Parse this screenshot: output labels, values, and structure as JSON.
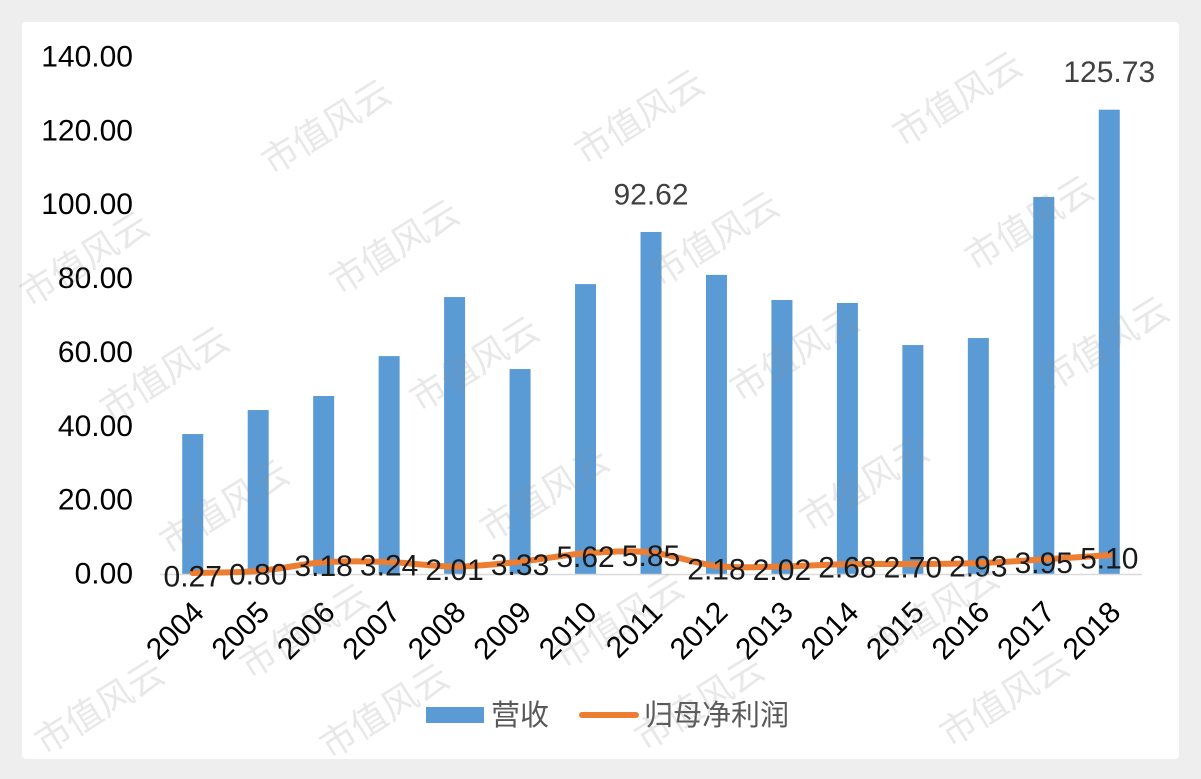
{
  "watermark": {
    "text": "市值风云"
  },
  "chart_data": {
    "type": "bar",
    "categories": [
      "2004",
      "2005",
      "2006",
      "2007",
      "2008",
      "2009",
      "2010",
      "2011",
      "2012",
      "2013",
      "2014",
      "2015",
      "2016",
      "2017",
      "2018"
    ],
    "series": [
      {
        "name": "营收",
        "chart_type": "bar",
        "color": "#5b9bd5",
        "values": [
          37.9,
          44.4,
          48.2,
          59.0,
          75.0,
          55.5,
          78.5,
          92.62,
          81.0,
          74.2,
          73.4,
          62.0,
          63.9,
          102.1,
          125.73
        ],
        "data_labels": [
          null,
          null,
          null,
          null,
          null,
          null,
          null,
          "92.62",
          null,
          null,
          null,
          null,
          null,
          null,
          "125.73"
        ]
      },
      {
        "name": "归母净利润",
        "chart_type": "line",
        "smooth": true,
        "color": "#ed7d31",
        "values": [
          0.27,
          0.8,
          3.18,
          3.24,
          2.01,
          3.33,
          5.62,
          5.85,
          2.18,
          2.02,
          2.68,
          2.7,
          2.93,
          3.95,
          5.1
        ],
        "data_labels": [
          "0.27",
          "0.80",
          "3.18",
          "3.24",
          "2.01",
          "3.33",
          "5.62",
          "5.85",
          "2.18",
          "2.02",
          "2.68",
          "2.70",
          "2.93",
          "3.95",
          "5.10"
        ]
      }
    ],
    "y_ticks": [
      "0.00",
      "20.00",
      "40.00",
      "60.00",
      "80.00",
      "100.00",
      "120.00",
      "140.00"
    ],
    "ylim": [
      0,
      140
    ],
    "grid": false,
    "legend": "bottom"
  }
}
